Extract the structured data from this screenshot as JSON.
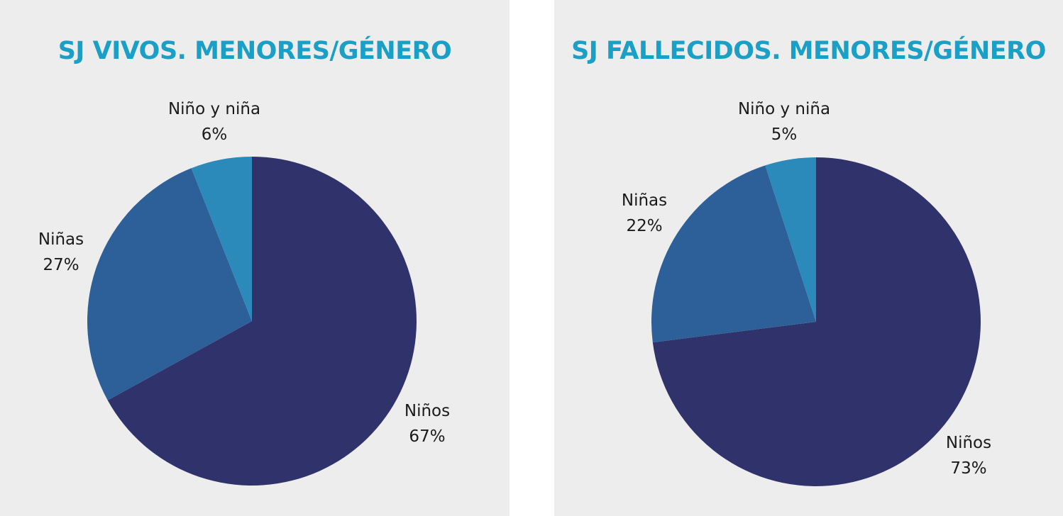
{
  "chart_data": [
    {
      "type": "pie",
      "title": "SJ VIVOS. MENORES/GÉNERO",
      "categories": [
        "Niños",
        "Niñas",
        "Niño y niña"
      ],
      "values": [
        67,
        27,
        6
      ],
      "value_labels": [
        "67%",
        "27%",
        "6%"
      ],
      "colors": [
        "#30336b",
        "#2d5f99",
        "#2b8ab9"
      ]
    },
    {
      "type": "pie",
      "title": "SJ FALLECIDOS. MENORES/GÉNERO",
      "categories": [
        "Niños",
        "Niñas",
        "Niño y niña"
      ],
      "values": [
        73,
        22,
        5
      ],
      "value_labels": [
        "73%",
        "22%",
        "5%"
      ],
      "colors": [
        "#30336b",
        "#2d5f99",
        "#2b8ab9"
      ]
    }
  ]
}
